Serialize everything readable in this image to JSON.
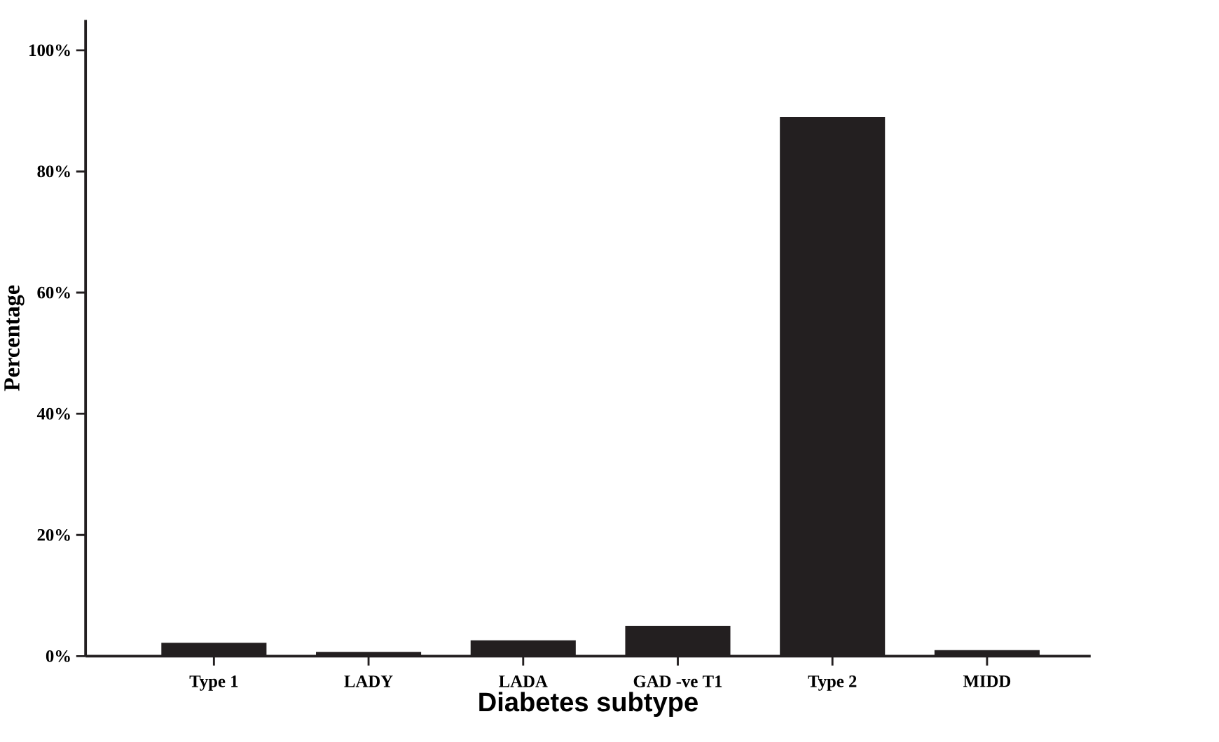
{
  "chart_data": {
    "type": "bar",
    "xlabel": "Diabetes subtype",
    "ylabel": "Percentage",
    "categories": [
      "Type 1",
      "LADY",
      "LADA",
      "GAD -ve T1",
      "Type 2",
      "MIDD"
    ],
    "values": [
      2.2,
      0.7,
      2.6,
      5.0,
      89,
      1.0
    ],
    "color": "#231f20",
    "ylim": [
      0,
      105
    ],
    "yticks": [
      {
        "value": 0,
        "label": "0%"
      },
      {
        "value": 20,
        "label": "20%"
      },
      {
        "value": 40,
        "label": "40%"
      },
      {
        "value": 60,
        "label": "60%"
      },
      {
        "value": 80,
        "label": "80%"
      },
      {
        "value": 100,
        "label": "100%"
      }
    ],
    "grid": false
  }
}
